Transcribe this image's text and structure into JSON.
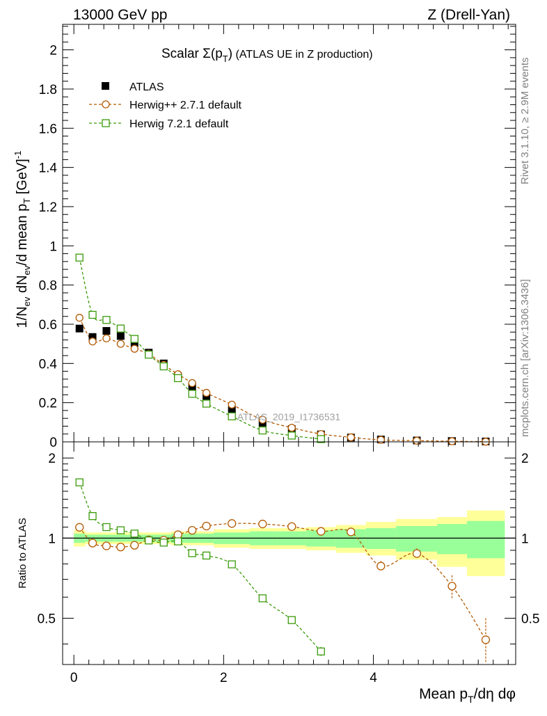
{
  "header": {
    "energy": "13000 GeV pp",
    "process": "Z (Drell-Yan)"
  },
  "side_labels": {
    "rivet": "Rivet 3.1.10, ≥ 2.9M events",
    "mcplots": "mcplots.cern.ch [arXiv:1306.3436]"
  },
  "watermark": "ATLAS_2019_I1736531",
  "chart_data": [
    {
      "type": "scatter",
      "panel": "main",
      "title": "Scalar Σ(pT) (ATLAS UE in Z production)",
      "title_main": "Scalar Σ(p",
      "title_sub": "T",
      "title_close": ")",
      "title_rest": " (ATLAS UE in Z production)",
      "ylabel": "1/Nev dNev/d mean pT [GeV]-1",
      "ylabel_parts": [
        "1/N",
        "ev",
        " dN",
        "ev",
        "/d mean p",
        "T",
        " [GeV]",
        "-1"
      ],
      "xlim": [
        -0.15,
        5.9
      ],
      "ylim": [
        0,
        2.13
      ],
      "yticks": [
        0,
        0.2,
        0.4,
        0.6,
        0.8,
        1,
        1.2,
        1.4,
        1.6,
        1.8,
        2
      ],
      "ytick_labels": [
        "0",
        "0.2",
        "0.4",
        "0.6",
        "0.8",
        "1",
        "1.2",
        "1.4",
        "1.6",
        "1.8",
        "2"
      ],
      "legend": [
        "ATLAS",
        "Herwig++ 2.7.1 default",
        "Herwig 7.2.1 default"
      ],
      "series": [
        {
          "name": "ATLAS",
          "color": "#000000",
          "marker": "filled-square",
          "x": [
            0.075,
            0.25,
            0.435,
            0.625,
            0.81,
            1.0,
            1.2,
            1.39,
            1.58,
            1.77,
            2.11,
            2.52,
            2.91,
            3.3,
            3.7,
            4.1,
            4.58,
            5.05,
            5.5
          ],
          "y": [
            0.578,
            0.535,
            0.566,
            0.54,
            0.505,
            0.455,
            0.4,
            0.335,
            0.28,
            0.225,
            0.163,
            0.098,
            0.065,
            0.038,
            0.022,
            0.012,
            0.007,
            0.004,
            0.002
          ]
        },
        {
          "name": "Herwig++ 2.7.1 default",
          "color": "#b35900",
          "marker": "open-circle",
          "x": [
            0.075,
            0.25,
            0.435,
            0.625,
            0.81,
            1.0,
            1.2,
            1.39,
            1.58,
            1.77,
            2.11,
            2.52,
            2.91,
            3.3,
            3.7,
            4.1,
            4.58,
            5.05,
            5.5
          ],
          "y": [
            0.633,
            0.512,
            0.528,
            0.5,
            0.475,
            0.448,
            0.393,
            0.345,
            0.3,
            0.25,
            0.19,
            0.113,
            0.072,
            0.04,
            0.023,
            0.01,
            0.006,
            0.003,
            0.001
          ]
        },
        {
          "name": "Herwig 7.2.1 default",
          "color": "#3a9a0a",
          "marker": "open-square",
          "x": [
            0.075,
            0.25,
            0.435,
            0.625,
            0.81,
            1.0,
            1.2,
            1.39,
            1.58,
            1.77,
            2.11,
            2.52,
            2.91,
            3.3
          ],
          "y": [
            0.94,
            0.648,
            0.622,
            0.578,
            0.525,
            0.445,
            0.385,
            0.325,
            0.245,
            0.195,
            0.13,
            0.058,
            0.032,
            0.014
          ]
        }
      ]
    },
    {
      "type": "line",
      "panel": "ratio",
      "ylabel": "Ratio to ATLAS",
      "xlabel": "Mean pT/dη dφ",
      "xlabel_parts": [
        "Mean p",
        "T",
        "/dη dφ"
      ],
      "xlim": [
        -0.15,
        5.9
      ],
      "ylim": [
        0.335,
        2.3
      ],
      "yscale": "log",
      "xticks": [
        0,
        2,
        4
      ],
      "xtick_labels": [
        "0",
        "2",
        "4"
      ],
      "yticks": [
        0.5,
        1,
        2
      ],
      "ytick_labels": [
        "0.5",
        "1",
        "2"
      ],
      "uncertainty_bands": {
        "bin_edges": [
          0,
          0.15,
          0.35,
          0.53,
          0.72,
          0.9,
          1.1,
          1.3,
          1.48,
          1.67,
          1.87,
          2.35,
          2.72,
          3.1,
          3.5,
          3.9,
          4.3,
          4.85,
          5.25,
          5.75
        ],
        "yellow_upper": [
          1.07,
          1.05,
          1.05,
          1.05,
          1.05,
          1.05,
          1.05,
          1.06,
          1.06,
          1.06,
          1.08,
          1.09,
          1.09,
          1.1,
          1.12,
          1.15,
          1.18,
          1.2,
          1.27
        ],
        "yellow_lower": [
          0.93,
          0.95,
          0.95,
          0.95,
          0.95,
          0.95,
          0.95,
          0.94,
          0.94,
          0.94,
          0.92,
          0.91,
          0.91,
          0.9,
          0.88,
          0.86,
          0.83,
          0.78,
          0.72
        ],
        "green_upper": [
          1.04,
          1.03,
          1.03,
          1.03,
          1.03,
          1.03,
          1.03,
          1.04,
          1.04,
          1.04,
          1.05,
          1.06,
          1.06,
          1.07,
          1.08,
          1.09,
          1.11,
          1.13,
          1.16
        ],
        "green_lower": [
          0.96,
          0.97,
          0.97,
          0.97,
          0.97,
          0.97,
          0.97,
          0.96,
          0.96,
          0.96,
          0.95,
          0.94,
          0.94,
          0.93,
          0.92,
          0.91,
          0.89,
          0.87,
          0.84
        ]
      },
      "series": [
        {
          "name": "Herwig++ 2.7.1 default",
          "color": "#b35900",
          "marker": "open-circle",
          "x": [
            0.075,
            0.25,
            0.435,
            0.625,
            0.81,
            1.0,
            1.2,
            1.39,
            1.58,
            1.77,
            2.11,
            2.52,
            2.91,
            3.3,
            3.7,
            4.1,
            4.58,
            5.05,
            5.5
          ],
          "y": [
            1.098,
            0.958,
            0.935,
            0.926,
            0.94,
            0.985,
            0.982,
            1.03,
            1.07,
            1.11,
            1.135,
            1.13,
            1.105,
            1.06,
            1.055,
            0.785,
            0.875,
            0.66,
            0.415
          ],
          "err": [
            0,
            0,
            0,
            0,
            0,
            0,
            0,
            0,
            0,
            0,
            0,
            0,
            0,
            0,
            0.03,
            0.035,
            0.04,
            0.065,
            0.085
          ]
        },
        {
          "name": "Herwig 7.2.1 default",
          "color": "#3a9a0a",
          "marker": "open-square",
          "x": [
            0.075,
            0.25,
            0.435,
            0.625,
            0.81,
            1.0,
            1.2,
            1.39,
            1.58,
            1.77,
            2.11,
            2.52,
            2.91,
            3.3
          ],
          "y": [
            1.62,
            1.21,
            1.1,
            1.07,
            1.04,
            0.98,
            0.962,
            0.972,
            0.878,
            0.86,
            0.797,
            0.594,
            0.492,
            0.375
          ],
          "err": [
            0,
            0,
            0,
            0,
            0,
            0,
            0,
            0,
            0,
            0,
            0,
            0,
            0,
            0.015
          ]
        }
      ]
    }
  ]
}
